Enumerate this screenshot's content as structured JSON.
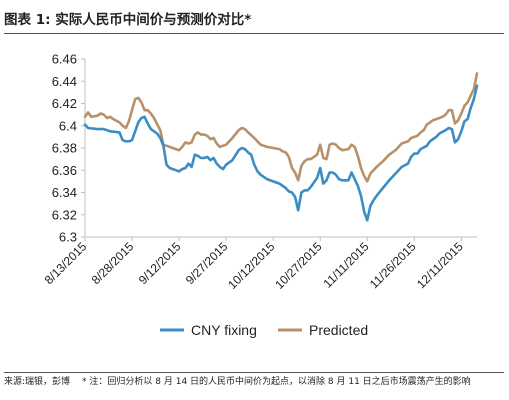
{
  "figure": {
    "title": "图表 1: 实际人民币中间价与预测价对比*",
    "source": "来源:瑞银，彭博",
    "note": "* 注：回归分析以 8 月 14 日的人民币中间价为起点，以消除 8 月 11 日之后市场震荡产生的影响"
  },
  "colors": {
    "cny_fixing": "#3a8dc5",
    "predicted": "#b8916b",
    "axis": "#bfbfbf"
  },
  "chart_data": {
    "type": "line",
    "title": "",
    "xlabel": "",
    "ylabel": "",
    "ylim": [
      6.3,
      6.46
    ],
    "yticks": [
      "6.46",
      "6.44",
      "6.42",
      "6.4",
      "6.38",
      "6.36",
      "6.34",
      "6.32",
      "6.3"
    ],
    "x_tick_labels": [
      "8/13/2015",
      "8/28/2015",
      "9/12/2015",
      "9/27/2015",
      "10/12/2015",
      "10/27/2015",
      "11/11/2015",
      "11/26/2015",
      "12/11/2015"
    ],
    "x_range": [
      "2015-08-13",
      "2015-12-16"
    ],
    "grid": false,
    "legend": "bottom",
    "series": [
      {
        "name": "CNY fixing",
        "points": [
          [
            "2015-08-13",
            6.401
          ],
          [
            "2015-08-14",
            6.398
          ],
          [
            "2015-08-17",
            6.397
          ],
          [
            "2015-08-18",
            6.397
          ],
          [
            "2015-08-19",
            6.397
          ],
          [
            "2015-08-20",
            6.396
          ],
          [
            "2015-08-21",
            6.395
          ],
          [
            "2015-08-24",
            6.394
          ],
          [
            "2015-08-25",
            6.387
          ],
          [
            "2015-08-26",
            6.386
          ],
          [
            "2015-08-27",
            6.386
          ],
          [
            "2015-08-28",
            6.387
          ],
          [
            "2015-08-30",
            6.403
          ],
          [
            "2015-08-31",
            6.407
          ],
          [
            "2015-09-01",
            6.408
          ],
          [
            "2015-09-02",
            6.402
          ],
          [
            "2015-09-03",
            6.397
          ],
          [
            "2015-09-05",
            6.393
          ],
          [
            "2015-09-06",
            6.389
          ],
          [
            "2015-09-07",
            6.382
          ],
          [
            "2015-09-08",
            6.365
          ],
          [
            "2015-09-09",
            6.362
          ],
          [
            "2015-09-10",
            6.361
          ],
          [
            "2015-09-11",
            6.36
          ],
          [
            "2015-09-12",
            6.359
          ],
          [
            "2015-09-13",
            6.361
          ],
          [
            "2015-09-14",
            6.362
          ],
          [
            "2015-09-15",
            6.366
          ],
          [
            "2015-09-16",
            6.363
          ],
          [
            "2015-09-17",
            6.374
          ],
          [
            "2015-09-18",
            6.373
          ],
          [
            "2015-09-19",
            6.371
          ],
          [
            "2015-09-20",
            6.371
          ],
          [
            "2015-09-21",
            6.372
          ],
          [
            "2015-09-22",
            6.369
          ],
          [
            "2015-09-23",
            6.371
          ],
          [
            "2015-09-24",
            6.366
          ],
          [
            "2015-09-25",
            6.363
          ],
          [
            "2015-09-26",
            6.361
          ],
          [
            "2015-09-27",
            6.365
          ],
          [
            "2015-09-29",
            6.369
          ],
          [
            "2015-10-01",
            6.378
          ],
          [
            "2015-10-02",
            6.38
          ],
          [
            "2015-10-03",
            6.379
          ],
          [
            "2015-10-04",
            6.376
          ],
          [
            "2015-10-05",
            6.374
          ],
          [
            "2015-10-06",
            6.365
          ],
          [
            "2015-10-07",
            6.359
          ],
          [
            "2015-10-08",
            6.356
          ],
          [
            "2015-10-10",
            6.352
          ],
          [
            "2015-10-12",
            6.35
          ],
          [
            "2015-10-14",
            6.348
          ],
          [
            "2015-10-16",
            6.344
          ],
          [
            "2015-10-17",
            6.341
          ],
          [
            "2015-10-18",
            6.34
          ],
          [
            "2015-10-19",
            6.336
          ],
          [
            "2015-10-20",
            6.324
          ],
          [
            "2015-10-21",
            6.34
          ],
          [
            "2015-10-22",
            6.342
          ],
          [
            "2015-10-23",
            6.342
          ],
          [
            "2015-10-24",
            6.345
          ],
          [
            "2015-10-26",
            6.353
          ],
          [
            "2015-10-27",
            6.362
          ],
          [
            "2015-10-28",
            6.348
          ],
          [
            "2015-10-29",
            6.351
          ],
          [
            "2015-10-30",
            6.358
          ],
          [
            "2015-10-31",
            6.358
          ],
          [
            "2015-11-01",
            6.356
          ],
          [
            "2015-11-02",
            6.352
          ],
          [
            "2015-11-03",
            6.351
          ],
          [
            "2015-11-05",
            6.351
          ],
          [
            "2015-11-06",
            6.358
          ],
          [
            "2015-11-08",
            6.346
          ],
          [
            "2015-11-09",
            6.337
          ],
          [
            "2015-11-10",
            6.323
          ],
          [
            "2015-11-11",
            6.315
          ],
          [
            "2015-11-12",
            6.328
          ],
          [
            "2015-11-13",
            6.333
          ],
          [
            "2015-11-14",
            6.337
          ],
          [
            "2015-11-16",
            6.344
          ],
          [
            "2015-11-18",
            6.351
          ],
          [
            "2015-11-20",
            6.357
          ],
          [
            "2015-11-22",
            6.363
          ],
          [
            "2015-11-24",
            6.366
          ],
          [
            "2015-11-25",
            6.372
          ],
          [
            "2015-11-26",
            6.375
          ],
          [
            "2015-11-27",
            6.375
          ],
          [
            "2015-11-28",
            6.379
          ],
          [
            "2015-11-30",
            6.382
          ],
          [
            "2015-12-01",
            6.386
          ],
          [
            "2015-12-02",
            6.388
          ],
          [
            "2015-12-03",
            6.39
          ],
          [
            "2015-12-04",
            6.393
          ],
          [
            "2015-12-06",
            6.396
          ],
          [
            "2015-12-07",
            6.398
          ],
          [
            "2015-12-08",
            6.397
          ],
          [
            "2015-12-09",
            6.385
          ],
          [
            "2015-12-10",
            6.388
          ],
          [
            "2015-12-11",
            6.395
          ],
          [
            "2015-12-12",
            6.404
          ],
          [
            "2015-12-13",
            6.406
          ],
          [
            "2015-12-14",
            6.416
          ],
          [
            "2015-12-15",
            6.424
          ],
          [
            "2015-12-16",
            6.436
          ]
        ]
      },
      {
        "name": "Predicted",
        "points": [
          [
            "2015-08-13",
            6.408
          ],
          [
            "2015-08-14",
            6.412
          ],
          [
            "2015-08-15",
            6.408
          ],
          [
            "2015-08-17",
            6.409
          ],
          [
            "2015-08-18",
            6.411
          ],
          [
            "2015-08-19",
            6.41
          ],
          [
            "2015-08-20",
            6.407
          ],
          [
            "2015-08-21",
            6.408
          ],
          [
            "2015-08-22",
            6.406
          ],
          [
            "2015-08-24",
            6.403
          ],
          [
            "2015-08-25",
            6.4
          ],
          [
            "2015-08-26",
            6.398
          ],
          [
            "2015-08-27",
            6.404
          ],
          [
            "2015-08-28",
            6.414
          ],
          [
            "2015-08-29",
            6.424
          ],
          [
            "2015-08-30",
            6.425
          ],
          [
            "2015-08-31",
            6.421
          ],
          [
            "2015-09-01",
            6.414
          ],
          [
            "2015-09-02",
            6.414
          ],
          [
            "2015-09-03",
            6.411
          ],
          [
            "2015-09-04",
            6.407
          ],
          [
            "2015-09-06",
            6.396
          ],
          [
            "2015-09-07",
            6.383
          ],
          [
            "2015-09-08",
            6.382
          ],
          [
            "2015-09-09",
            6.381
          ],
          [
            "2015-09-10",
            6.38
          ],
          [
            "2015-09-11",
            6.379
          ],
          [
            "2015-09-12",
            6.378
          ],
          [
            "2015-09-13",
            6.381
          ],
          [
            "2015-09-14",
            6.385
          ],
          [
            "2015-09-15",
            6.384
          ],
          [
            "2015-09-16",
            6.385
          ],
          [
            "2015-09-17",
            6.392
          ],
          [
            "2015-09-18",
            6.394
          ],
          [
            "2015-09-19",
            6.392
          ],
          [
            "2015-09-20",
            6.392
          ],
          [
            "2015-09-21",
            6.391
          ],
          [
            "2015-09-22",
            6.388
          ],
          [
            "2015-09-23",
            6.389
          ],
          [
            "2015-09-24",
            6.384
          ],
          [
            "2015-09-25",
            6.381
          ],
          [
            "2015-09-27",
            6.383
          ],
          [
            "2015-09-29",
            6.389
          ],
          [
            "2015-10-01",
            6.396
          ],
          [
            "2015-10-02",
            6.398
          ],
          [
            "2015-10-03",
            6.397
          ],
          [
            "2015-10-04",
            6.394
          ],
          [
            "2015-10-06",
            6.389
          ],
          [
            "2015-10-08",
            6.383
          ],
          [
            "2015-10-10",
            6.381
          ],
          [
            "2015-10-12",
            6.38
          ],
          [
            "2015-10-14",
            6.379
          ],
          [
            "2015-10-15",
            6.377
          ],
          [
            "2015-10-16",
            6.376
          ],
          [
            "2015-10-17",
            6.372
          ],
          [
            "2015-10-18",
            6.362
          ],
          [
            "2015-10-19",
            6.358
          ],
          [
            "2015-10-20",
            6.351
          ],
          [
            "2015-10-21",
            6.364
          ],
          [
            "2015-10-22",
            6.368
          ],
          [
            "2015-10-23",
            6.37
          ],
          [
            "2015-10-24",
            6.37
          ],
          [
            "2015-10-26",
            6.374
          ],
          [
            "2015-10-27",
            6.383
          ],
          [
            "2015-10-28",
            6.371
          ],
          [
            "2015-10-29",
            6.37
          ],
          [
            "2015-10-30",
            6.383
          ],
          [
            "2015-10-31",
            6.384
          ],
          [
            "2015-11-01",
            6.383
          ],
          [
            "2015-11-02",
            6.38
          ],
          [
            "2015-11-03",
            6.378
          ],
          [
            "2015-11-05",
            6.379
          ],
          [
            "2015-11-06",
            6.383
          ],
          [
            "2015-11-07",
            6.381
          ],
          [
            "2015-11-08",
            6.373
          ],
          [
            "2015-11-09",
            6.362
          ],
          [
            "2015-11-10",
            6.355
          ],
          [
            "2015-11-11",
            6.35
          ],
          [
            "2015-11-12",
            6.357
          ],
          [
            "2015-11-13",
            6.36
          ],
          [
            "2015-11-14",
            6.363
          ],
          [
            "2015-11-16",
            6.368
          ],
          [
            "2015-11-18",
            6.374
          ],
          [
            "2015-11-20",
            6.378
          ],
          [
            "2015-11-22",
            6.384
          ],
          [
            "2015-11-24",
            6.386
          ],
          [
            "2015-11-25",
            6.389
          ],
          [
            "2015-11-27",
            6.391
          ],
          [
            "2015-11-28",
            6.394
          ],
          [
            "2015-11-29",
            6.396
          ],
          [
            "2015-11-30",
            6.401
          ],
          [
            "2015-12-01",
            6.403
          ],
          [
            "2015-12-02",
            6.405
          ],
          [
            "2015-12-03",
            6.406
          ],
          [
            "2015-12-04",
            6.407
          ],
          [
            "2015-12-05",
            6.408
          ],
          [
            "2015-12-06",
            6.41
          ],
          [
            "2015-12-07",
            6.414
          ],
          [
            "2015-12-08",
            6.414
          ],
          [
            "2015-12-09",
            6.402
          ],
          [
            "2015-12-10",
            6.405
          ],
          [
            "2015-12-11",
            6.411
          ],
          [
            "2015-12-12",
            6.418
          ],
          [
            "2015-12-13",
            6.421
          ],
          [
            "2015-12-14",
            6.427
          ],
          [
            "2015-12-15",
            6.433
          ],
          [
            "2015-12-16",
            6.447
          ]
        ]
      }
    ]
  }
}
